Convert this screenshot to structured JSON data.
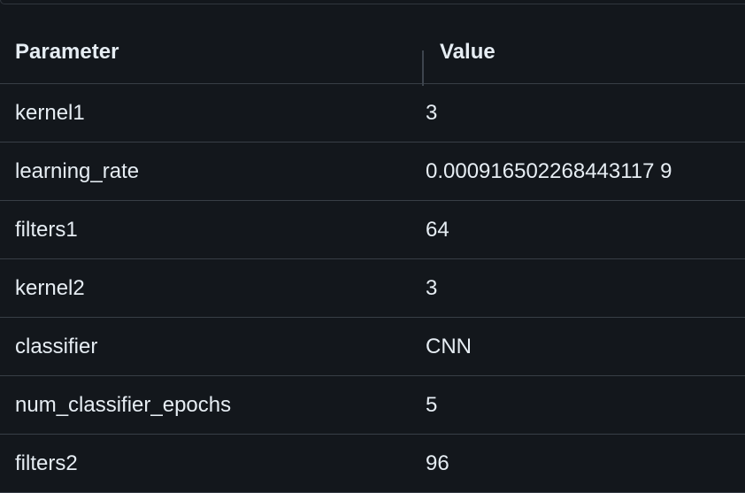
{
  "table": {
    "headers": {
      "parameter": "Parameter",
      "value": "Value"
    },
    "rows": [
      {
        "parameter": "kernel1",
        "value": "3"
      },
      {
        "parameter": "learning_rate",
        "value": "0.000916502268443117 9"
      },
      {
        "parameter": "filters1",
        "value": "64"
      },
      {
        "parameter": "kernel2",
        "value": "3"
      },
      {
        "parameter": "classifier",
        "value": "CNN"
      },
      {
        "parameter": "num_classifier_epochs",
        "value": "5"
      },
      {
        "parameter": "filters2",
        "value": "96"
      }
    ]
  }
}
